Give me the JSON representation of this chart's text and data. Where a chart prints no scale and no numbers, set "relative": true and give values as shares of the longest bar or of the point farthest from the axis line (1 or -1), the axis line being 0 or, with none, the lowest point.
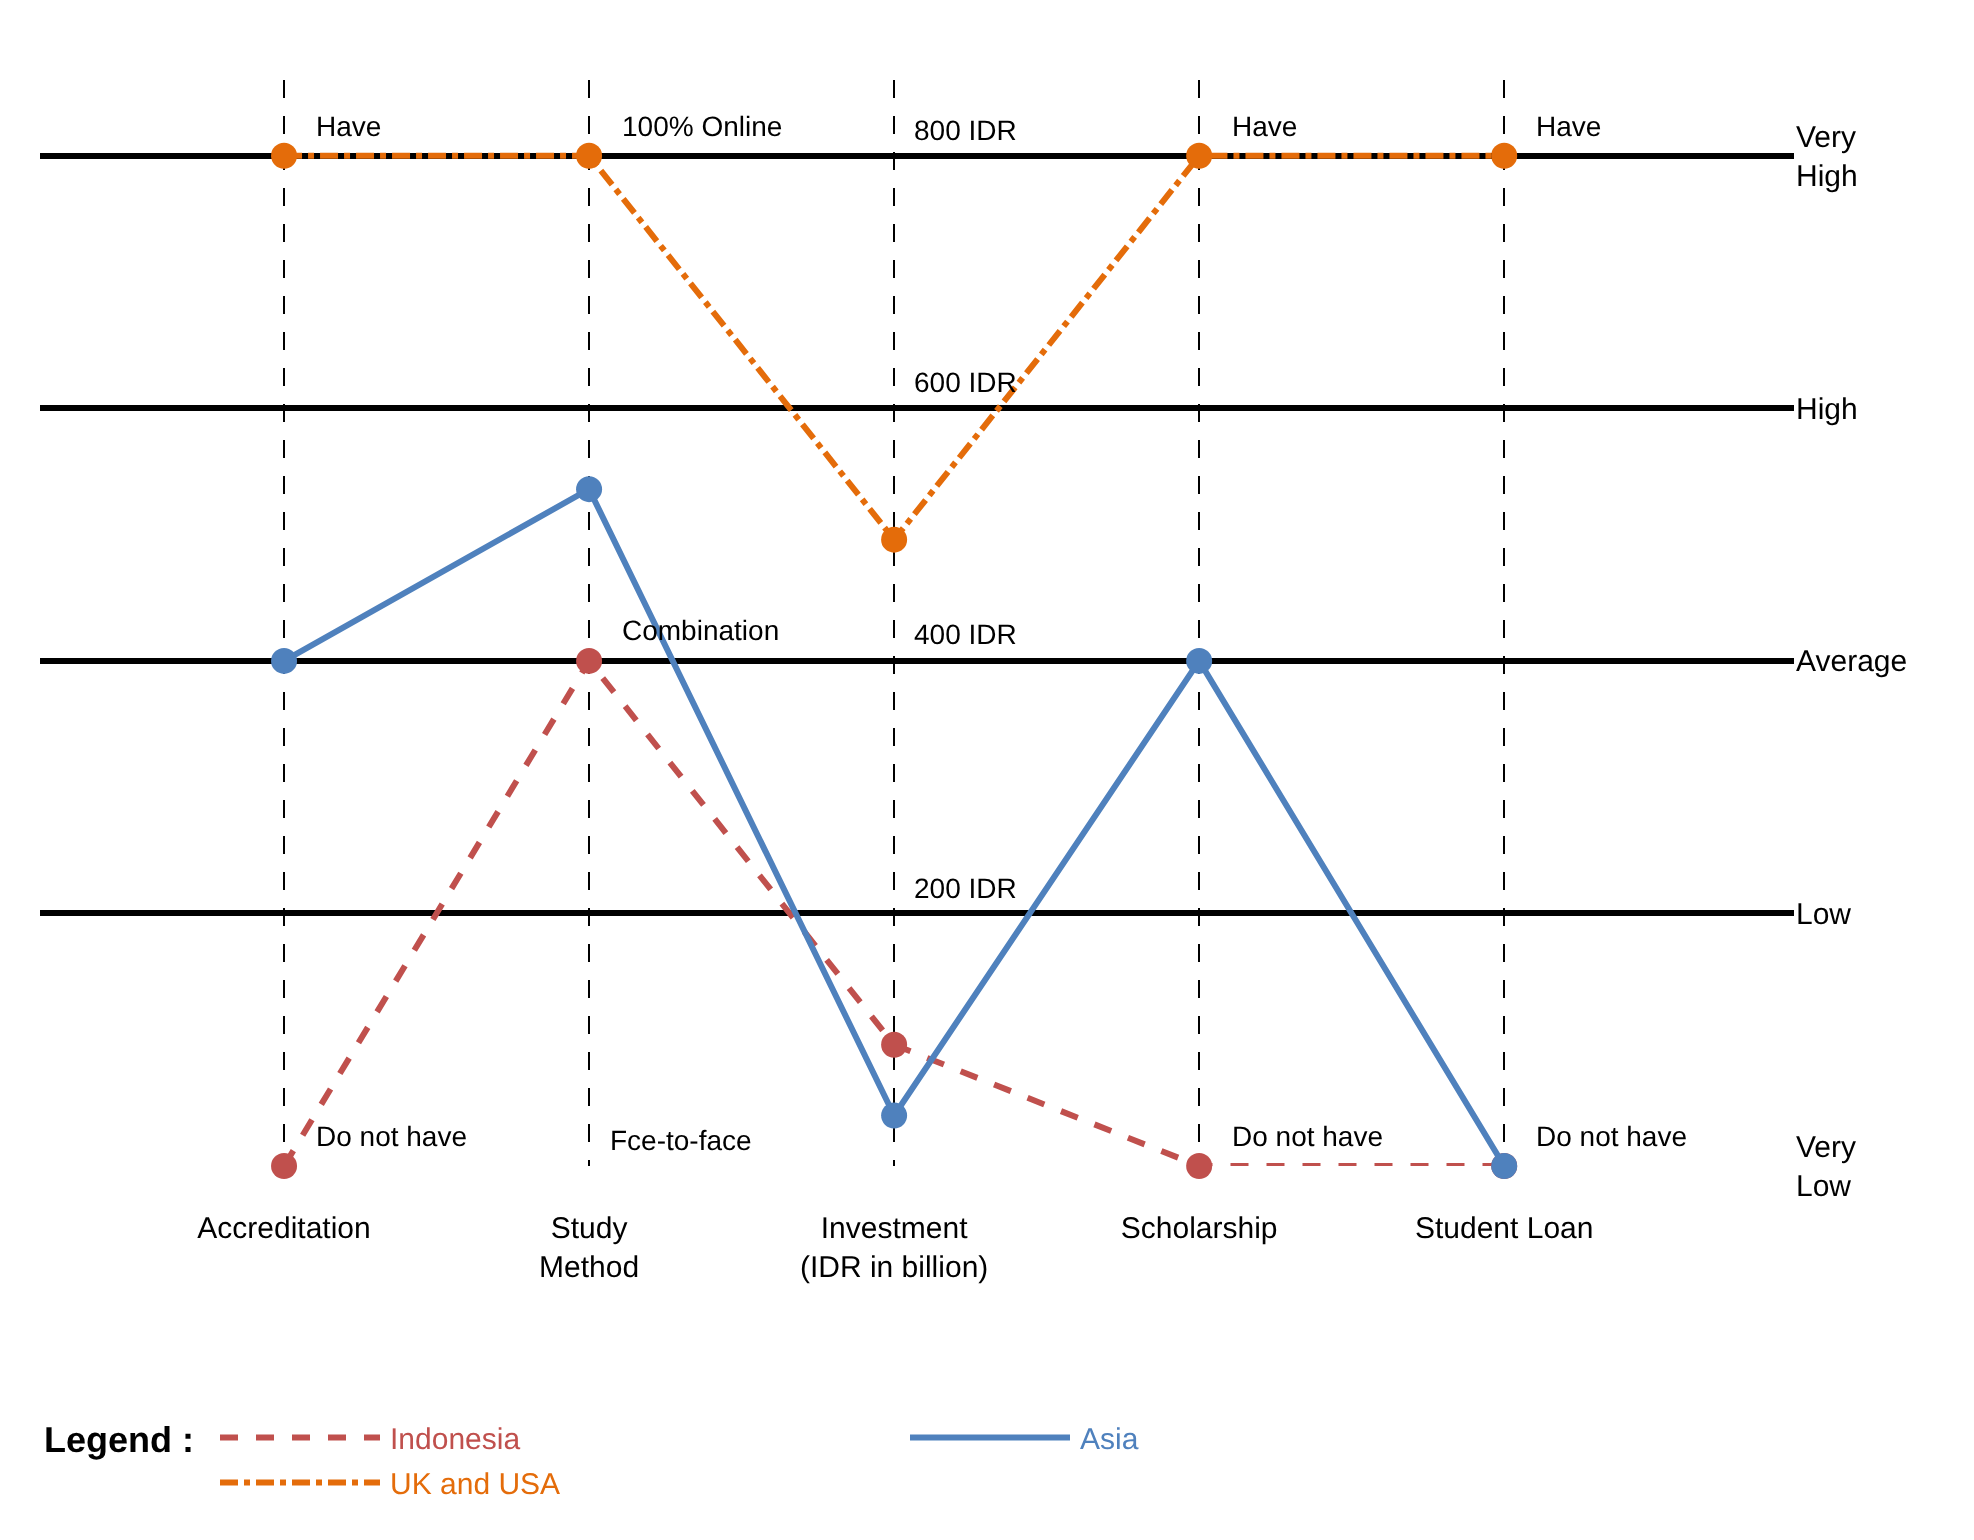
{
  "chart_data": {
    "type": "line",
    "categories": [
      "Accreditation",
      "Study\nMethod",
      "Investment\n(IDR in billion)",
      "Scholarship",
      "Student Loan"
    ],
    "series": [
      {
        "name": "Indonesia",
        "color": "#c0504d",
        "line_style": "dashed",
        "values": [
          0,
          0.5,
          0.12,
          0,
          0
        ]
      },
      {
        "name": "Asia",
        "color": "#4f81bd",
        "line_style": "solid",
        "values": [
          0.5,
          0.67,
          0.05,
          0.5,
          0
        ]
      },
      {
        "name": "UK and USA",
        "color": "#e46c0a",
        "line_style": "dashdot",
        "values": [
          1,
          1,
          0.62,
          1,
          1
        ]
      }
    ],
    "relative": true,
    "y_categories": [
      "Very\nHigh",
      "High",
      "Average",
      "Low",
      "Very\nLow"
    ],
    "grid": true,
    "marker": "circle",
    "legend": "bottom",
    "legend_title": "Legend :",
    "annotations": [
      {
        "text": "Have",
        "x": "Accreditation",
        "y": 1
      },
      {
        "text": "100% Online",
        "x": "Study\nMethod",
        "y": 1
      },
      {
        "text": "Have",
        "x": "Scholarship",
        "y": 1
      },
      {
        "text": "Have",
        "x": "Student Loan",
        "y": 1
      },
      "800 IDR",
      "600 IDR",
      "400 IDR",
      "200 IDR",
      {
        "text": "Combination",
        "x": "Study\nMethod",
        "y": 0.5
      },
      "Fce-to-face",
      {
        "text": "Do not have",
        "x": "Accreditation",
        "y": 0
      },
      {
        "text": "Do not have",
        "x": "Scholarship",
        "y": 0
      },
      {
        "text": "Do not have",
        "x": "Student Loan",
        "y": 0
      }
    ]
  }
}
